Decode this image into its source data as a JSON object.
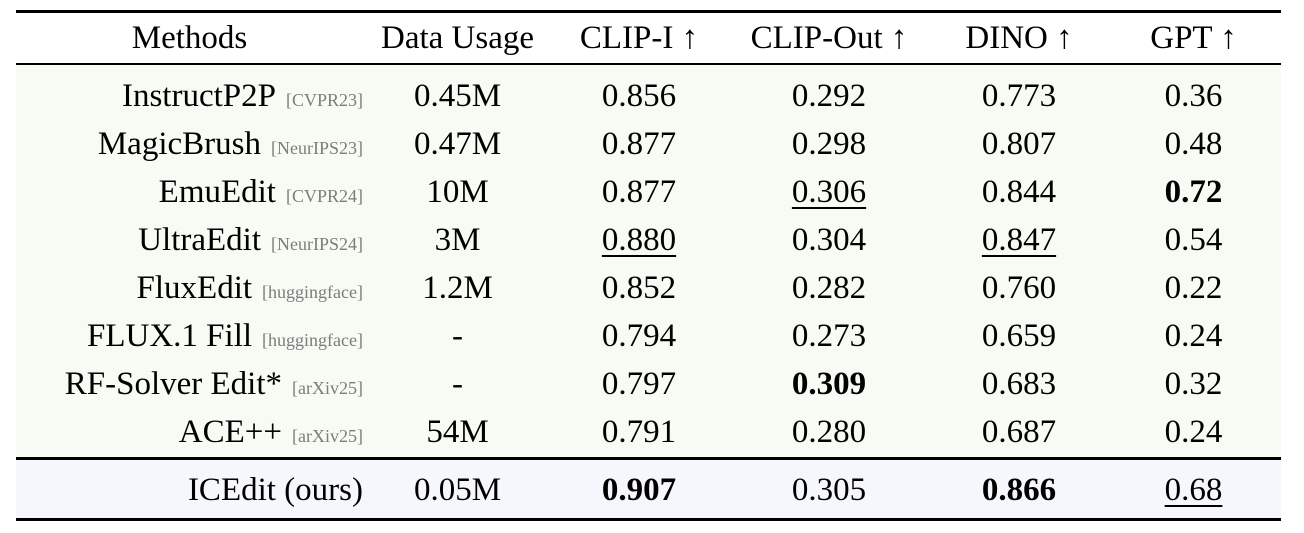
{
  "headers": {
    "method": "Methods",
    "data_usage": "Data Usage",
    "clip_i": "CLIP-I ↑",
    "clip_out": "CLIP-Out ↑",
    "dino": "DINO ↑",
    "gpt": "GPT ↑"
  },
  "rows": [
    {
      "method": "InstructP2P",
      "venue": "[CVPR23]",
      "data_usage": "0.45M",
      "clip_i": "0.856",
      "clip_out": "0.292",
      "dino": "0.773",
      "gpt": "0.36"
    },
    {
      "method": "MagicBrush",
      "venue": "[NeurIPS23]",
      "data_usage": "0.47M",
      "clip_i": "0.877",
      "clip_out": "0.298",
      "dino": "0.807",
      "gpt": "0.48"
    },
    {
      "method": "EmuEdit",
      "venue": "[CVPR24]",
      "data_usage": "10M",
      "clip_i": "0.877",
      "clip_out": "0.306",
      "dino": "0.844",
      "gpt": "0.72"
    },
    {
      "method": "UltraEdit",
      "venue": "[NeurIPS24]",
      "data_usage": "3M",
      "clip_i": "0.880",
      "clip_out": "0.304",
      "dino": "0.847",
      "gpt": "0.54"
    },
    {
      "method": "FluxEdit",
      "venue": "[huggingface]",
      "data_usage": "1.2M",
      "clip_i": "0.852",
      "clip_out": "0.282",
      "dino": "0.760",
      "gpt": "0.22"
    },
    {
      "method": "FLUX.1 Fill",
      "venue": "[huggingface]",
      "data_usage": "-",
      "clip_i": "0.794",
      "clip_out": "0.273",
      "dino": "0.659",
      "gpt": "0.24"
    },
    {
      "method": "RF-Solver Edit*",
      "venue": "[arXiv25]",
      "data_usage": "-",
      "clip_i": "0.797",
      "clip_out": "0.309",
      "dino": "0.683",
      "gpt": "0.32"
    },
    {
      "method": "ACE++",
      "venue": "[arXiv25]",
      "data_usage": "54M",
      "clip_i": "0.791",
      "clip_out": "0.280",
      "dino": "0.687",
      "gpt": "0.24"
    }
  ],
  "ours": {
    "method": "ICEdit (ours)",
    "data_usage": "0.05M",
    "clip_i": "0.907",
    "clip_out": "0.305",
    "dino": "0.866",
    "gpt": "0.68"
  }
}
